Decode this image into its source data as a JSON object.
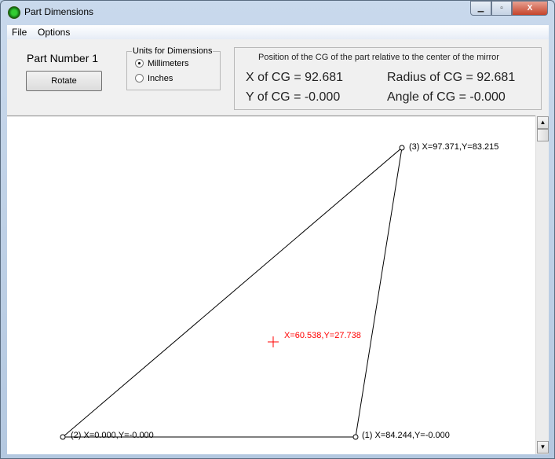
{
  "window": {
    "title": "Part Dimensions",
    "minimize": "▁",
    "maximize": "▫",
    "close": "X"
  },
  "menu": {
    "file": "File",
    "options": "Options"
  },
  "panel": {
    "part_number": "Part Number 1",
    "rotate_label": "Rotate",
    "units": {
      "label": "Units for Dimensions",
      "options": [
        "Millimeters",
        "Inches"
      ],
      "selected": "Millimeters"
    },
    "cg": {
      "heading": "Position of the CG of the part relative to the center of the mirror",
      "x": "X of CG = 92.681",
      "y": "Y of CG = -0.000",
      "radius": "Radius of CG = 92.681",
      "angle": "Angle of CG = -0.000"
    }
  },
  "canvas": {
    "points": [
      {
        "label": "(1) X=84.244,Y=-0.000"
      },
      {
        "label": "(2) X=0.000,Y=-0.000"
      },
      {
        "label": "(3) X=97.371,Y=83.215"
      }
    ],
    "cg_label": "X=60.538,Y=27.738",
    "cg_color": "#ff0000"
  }
}
